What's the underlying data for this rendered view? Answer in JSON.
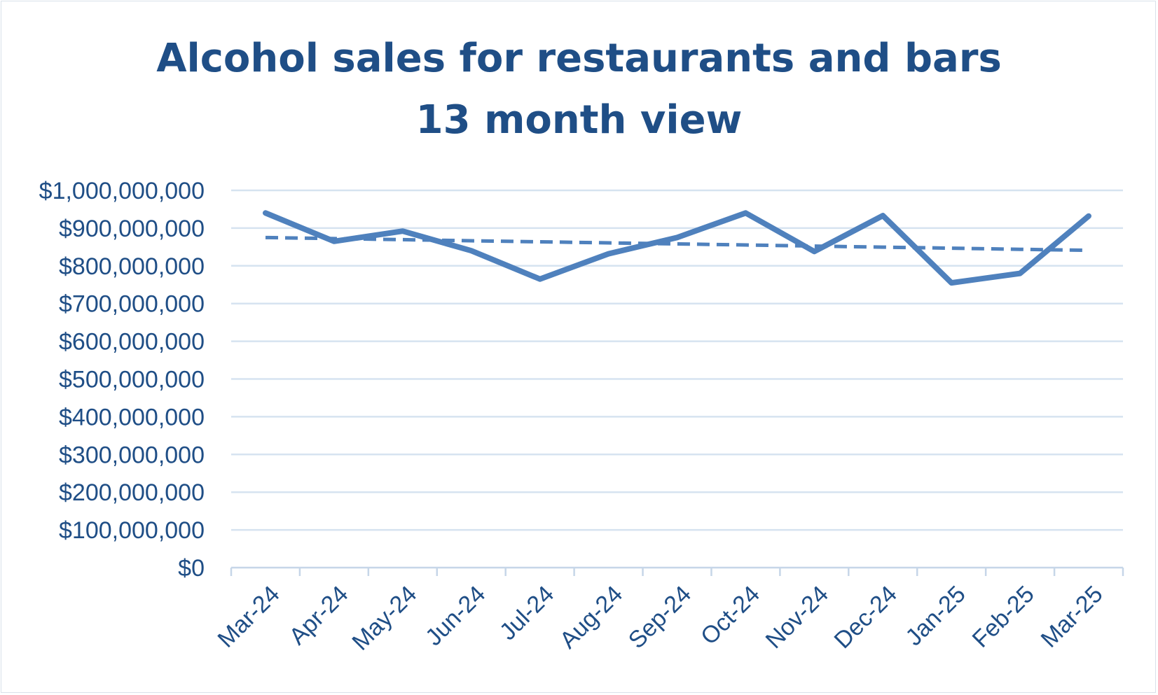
{
  "chart_data": {
    "type": "line",
    "title": "Alcohol sales for restaurants and bars",
    "subtitle": "13 month view",
    "categories": [
      "Mar-24",
      "Apr-24",
      "May-24",
      "Jun-24",
      "Jul-24",
      "Aug-24",
      "Sep-24",
      "Oct-24",
      "Nov-24",
      "Dec-24",
      "Jan-25",
      "Feb-25",
      "Mar-25"
    ],
    "series": [
      {
        "values": [
          940000000,
          865000000,
          892000000,
          840000000,
          765000000,
          832000000,
          875000000,
          940000000,
          838000000,
          933000000,
          755000000,
          780000000,
          932000000
        ],
        "color": "#4f81bd",
        "style": "solid"
      },
      {
        "values": [
          875000000,
          872200000,
          869300000,
          866500000,
          863700000,
          860800000,
          858000000,
          855200000,
          852300000,
          849500000,
          846700000,
          843800000,
          841000000
        ],
        "color": "#4f81bd",
        "style": "dashed",
        "role": "trendline"
      }
    ],
    "y_ticks": [
      "$0",
      "$100,000,000",
      "$200,000,000",
      "$300,000,000",
      "$400,000,000",
      "$500,000,000",
      "$600,000,000",
      "$700,000,000",
      "$800,000,000",
      "$900,000,000",
      "$1,000,000,000"
    ],
    "ylim": [
      0,
      1000000000
    ],
    "ytick_step": 100000000,
    "xlabel": "",
    "ylabel": "",
    "grid": true,
    "legend": "none",
    "colors": {
      "title": "#1f4e86",
      "ticks": "#1f4e86",
      "gridlines": "#d6e3f0",
      "axis": "#c6d6e8",
      "series": "#4f81bd"
    }
  }
}
